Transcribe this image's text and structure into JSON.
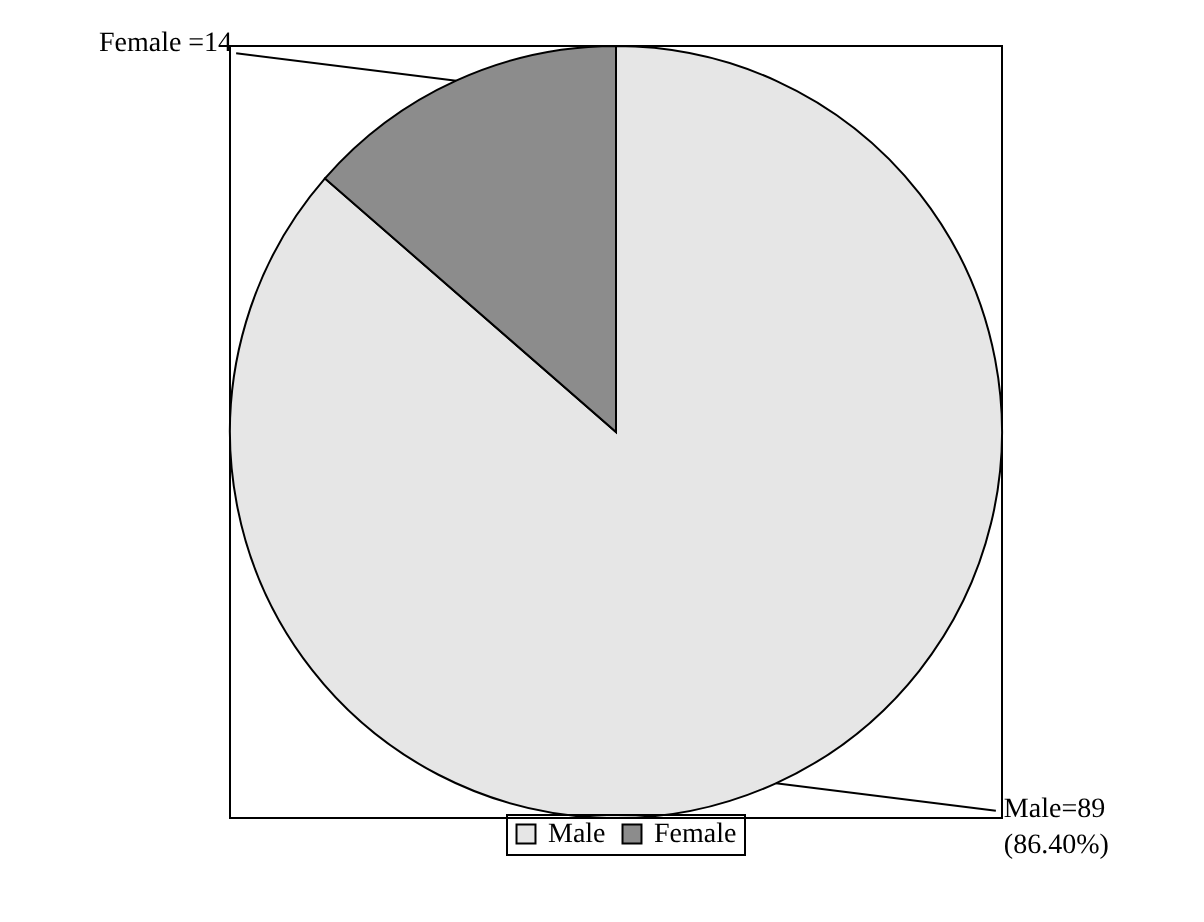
{
  "chart_data": {
    "type": "pie",
    "categories": [
      "Male",
      "Female"
    ],
    "values": [
      89,
      14
    ],
    "colors": [
      "#e6e6e6",
      "#8c8c8c"
    ],
    "value_labels": [
      "Male=89\n(86.40%)",
      "Female =14"
    ],
    "legend": "bottom"
  }
}
